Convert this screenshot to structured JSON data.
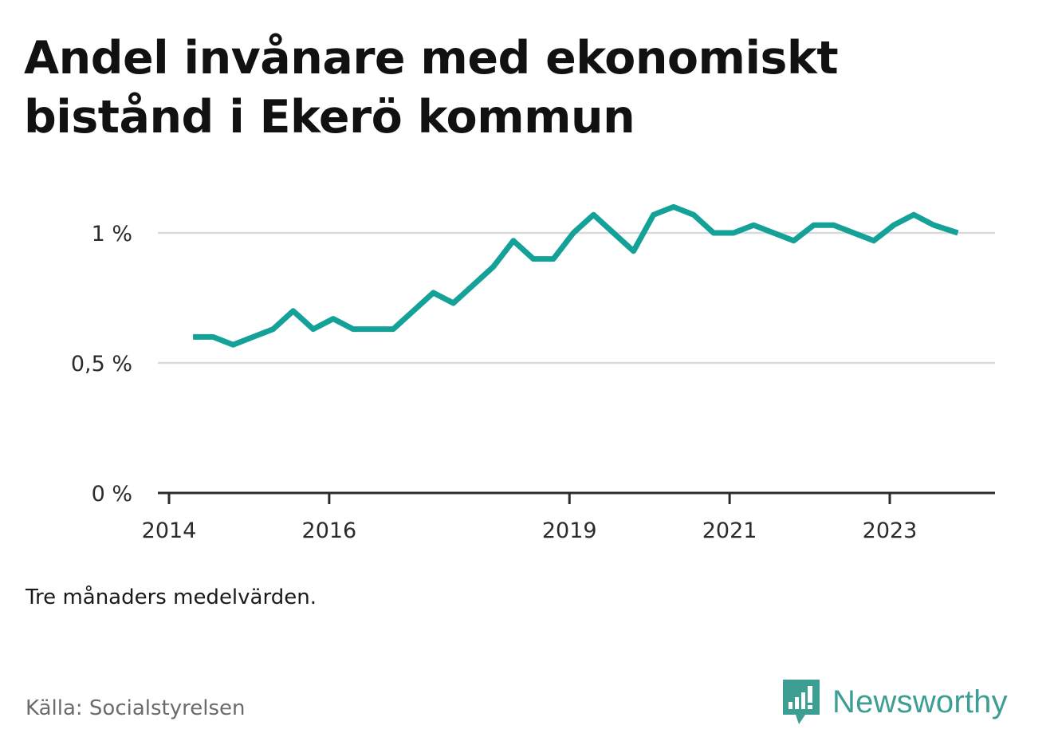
{
  "chart_data": {
    "type": "line",
    "title": "Andel invånare med ekonomiskt bistånd i Ekerö kommun",
    "note": "Tre månaders medelvärden.",
    "source": "Källa: Socialstyrelsen",
    "xlabel": "",
    "ylabel": "",
    "ylim": [
      0,
      1.1
    ],
    "xlim": [
      2014,
      2024.4
    ],
    "y_ticks": [
      {
        "value": 0,
        "label": "0 %"
      },
      {
        "value": 0.5,
        "label": "0,5 %"
      },
      {
        "value": 1,
        "label": "1 %"
      }
    ],
    "x_ticks": [
      {
        "value": 2014,
        "label": "2014"
      },
      {
        "value": 2016,
        "label": "2016"
      },
      {
        "value": 2019,
        "label": "2019"
      },
      {
        "value": 2021,
        "label": "2021"
      },
      {
        "value": 2023,
        "label": "2023"
      }
    ],
    "grid": true,
    "color": "#13a198",
    "series": [
      {
        "x": [
          2014.3,
          2014.55,
          2014.8,
          2015.05,
          2015.3,
          2015.55,
          2015.8,
          2016.05,
          2016.3,
          2016.55,
          2016.8,
          2017.05,
          2017.3,
          2017.55,
          2017.8,
          2018.05,
          2018.3,
          2018.55,
          2018.8,
          2019.05,
          2019.3,
          2019.55,
          2019.8,
          2020.05,
          2020.3,
          2020.55,
          2020.8,
          2021.05,
          2021.3,
          2021.55,
          2021.8,
          2022.05,
          2022.3,
          2022.55,
          2022.8,
          2023.05,
          2023.3,
          2023.55,
          2023.85
        ],
        "values": [
          0.6,
          0.6,
          0.57,
          0.6,
          0.63,
          0.7,
          0.63,
          0.67,
          0.63,
          0.63,
          0.63,
          0.7,
          0.77,
          0.73,
          0.8,
          0.87,
          0.97,
          0.9,
          0.9,
          1.0,
          1.07,
          1.0,
          0.93,
          1.07,
          1.1,
          1.07,
          1.0,
          1.0,
          1.03,
          1.0,
          0.97,
          1.03,
          1.03,
          1.0,
          0.97,
          1.03,
          1.07,
          1.03,
          1.0
        ]
      }
    ]
  },
  "branding": {
    "name": "Newsworthy",
    "logo_icon": "newsworthy-logo-icon",
    "color": "#3d9e93"
  }
}
